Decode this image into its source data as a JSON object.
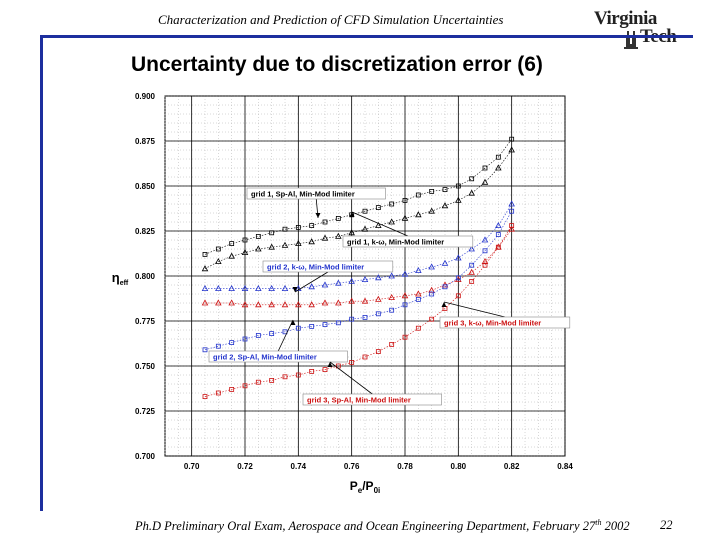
{
  "header": {
    "running_title": "Characterization and Prediction of CFD Simulation Uncertainties",
    "logo_text": "Virginia Tech",
    "logo_top": "Virginia",
    "logo_bottom": "Tech"
  },
  "slide": {
    "title": "Uncertainty due to discretization error (6)"
  },
  "footer": {
    "text": "Ph.D Preliminary Oral Exam, Aerospace and Ocean Engineering Department, February 27",
    "superscript": "th",
    "year": " 2002",
    "page_number": "22"
  },
  "colors": {
    "accent_rule": "#1d2f9e",
    "black_series": "#000000",
    "blue_series": "#2233cc",
    "red_series": "#cc1111"
  },
  "chart_data": {
    "type": "scatter",
    "xlabel_main": "P",
    "xlabel_sub1": "e",
    "xlabel_mid": "/P",
    "xlabel_sub2": "0i",
    "ylabel_main": "η",
    "ylabel_sub": "eff",
    "xlim": [
      0.69,
      0.84
    ],
    "ylim": [
      0.7,
      0.9
    ],
    "xticks": [
      "0.70",
      "0.72",
      "0.74",
      "0.76",
      "0.78",
      "0.80",
      "0.82",
      "0.84"
    ],
    "yticks": [
      "0.900",
      "0.875",
      "0.850",
      "0.825",
      "0.800",
      "0.775",
      "0.750",
      "0.725",
      "0.700"
    ],
    "grid": true,
    "series": [
      {
        "name": "grid 1, Sp-Al, Min-Mod limiter",
        "color": "#000000",
        "marker": "square",
        "x": [
          0.705,
          0.71,
          0.715,
          0.72,
          0.725,
          0.73,
          0.735,
          0.74,
          0.745,
          0.75,
          0.755,
          0.76,
          0.765,
          0.77,
          0.775,
          0.78,
          0.785,
          0.79,
          0.795,
          0.8,
          0.805,
          0.81,
          0.815,
          0.82
        ],
        "y": [
          0.812,
          0.815,
          0.818,
          0.82,
          0.822,
          0.824,
          0.826,
          0.827,
          0.828,
          0.83,
          0.832,
          0.834,
          0.836,
          0.838,
          0.84,
          0.842,
          0.845,
          0.847,
          0.848,
          0.85,
          0.854,
          0.86,
          0.866,
          0.876
        ]
      },
      {
        "name": "grid 1, k-ω, Min-Mod limiter",
        "color": "#000000",
        "marker": "triangle",
        "x": [
          0.705,
          0.71,
          0.715,
          0.72,
          0.725,
          0.73,
          0.735,
          0.74,
          0.745,
          0.75,
          0.755,
          0.76,
          0.765,
          0.77,
          0.775,
          0.78,
          0.785,
          0.79,
          0.795,
          0.8,
          0.805,
          0.81,
          0.815,
          0.82
        ],
        "y": [
          0.804,
          0.808,
          0.811,
          0.813,
          0.815,
          0.816,
          0.817,
          0.818,
          0.819,
          0.821,
          0.822,
          0.824,
          0.826,
          0.828,
          0.83,
          0.832,
          0.834,
          0.836,
          0.839,
          0.842,
          0.846,
          0.852,
          0.86,
          0.87
        ]
      },
      {
        "name": "grid 2, k-ω, Min-Mod limiter",
        "color": "#2233cc",
        "marker": "triangle",
        "x": [
          0.705,
          0.71,
          0.715,
          0.72,
          0.725,
          0.73,
          0.735,
          0.74,
          0.745,
          0.75,
          0.755,
          0.76,
          0.765,
          0.77,
          0.775,
          0.78,
          0.785,
          0.79,
          0.795,
          0.8,
          0.805,
          0.81,
          0.815,
          0.82
        ],
        "y": [
          0.793,
          0.793,
          0.793,
          0.793,
          0.793,
          0.793,
          0.793,
          0.793,
          0.794,
          0.795,
          0.796,
          0.797,
          0.798,
          0.799,
          0.8,
          0.801,
          0.803,
          0.805,
          0.807,
          0.81,
          0.815,
          0.82,
          0.828,
          0.84
        ]
      },
      {
        "name": "grid 3, k-ω, Min-Mod limiter",
        "color": "#cc1111",
        "marker": "triangle",
        "x": [
          0.705,
          0.71,
          0.715,
          0.72,
          0.725,
          0.73,
          0.735,
          0.74,
          0.745,
          0.75,
          0.755,
          0.76,
          0.765,
          0.77,
          0.775,
          0.78,
          0.785,
          0.79,
          0.795,
          0.8,
          0.805,
          0.81,
          0.815,
          0.82
        ],
        "y": [
          0.785,
          0.785,
          0.785,
          0.784,
          0.784,
          0.784,
          0.784,
          0.784,
          0.784,
          0.785,
          0.785,
          0.786,
          0.786,
          0.787,
          0.788,
          0.789,
          0.79,
          0.792,
          0.795,
          0.798,
          0.802,
          0.808,
          0.816,
          0.826
        ]
      },
      {
        "name": "grid 2, Sp-Al, Min-Mod limiter",
        "color": "#2233cc",
        "marker": "square",
        "x": [
          0.705,
          0.71,
          0.715,
          0.72,
          0.725,
          0.73,
          0.735,
          0.74,
          0.745,
          0.75,
          0.755,
          0.76,
          0.765,
          0.77,
          0.775,
          0.78,
          0.785,
          0.79,
          0.795,
          0.8,
          0.805,
          0.81,
          0.815,
          0.82
        ],
        "y": [
          0.759,
          0.761,
          0.763,
          0.765,
          0.767,
          0.768,
          0.769,
          0.771,
          0.772,
          0.773,
          0.774,
          0.776,
          0.777,
          0.779,
          0.781,
          0.784,
          0.787,
          0.79,
          0.794,
          0.799,
          0.806,
          0.814,
          0.823,
          0.836
        ]
      },
      {
        "name": "grid 3, Sp-Al, Min-Mod limiter",
        "color": "#cc1111",
        "marker": "square",
        "x": [
          0.705,
          0.71,
          0.715,
          0.72,
          0.725,
          0.73,
          0.735,
          0.74,
          0.745,
          0.75,
          0.755,
          0.76,
          0.765,
          0.77,
          0.775,
          0.78,
          0.785,
          0.79,
          0.795,
          0.8,
          0.805,
          0.81,
          0.815,
          0.82
        ],
        "y": [
          0.733,
          0.735,
          0.737,
          0.739,
          0.741,
          0.742,
          0.744,
          0.745,
          0.747,
          0.748,
          0.75,
          0.752,
          0.755,
          0.758,
          0.762,
          0.766,
          0.771,
          0.776,
          0.782,
          0.789,
          0.797,
          0.806,
          0.816,
          0.828
        ]
      }
    ],
    "annotations": [
      {
        "text": "grid 1, Sp-Al, Min-Mod limiter",
        "color": "#000000",
        "series": 0
      },
      {
        "text": "grid 1, k-ω, Min-Mod limiter",
        "color": "#000000",
        "series": 1
      },
      {
        "text": "grid 2, k-ω, Min-Mod limiter",
        "color": "#2233cc",
        "series": 2
      },
      {
        "text": "grid 3, k-ω, Min-Mod limiter",
        "color": "#cc1111",
        "series": 3
      },
      {
        "text": "grid 2, Sp-Al, Min-Mod limiter",
        "color": "#2233cc",
        "series": 4
      },
      {
        "text": "grid 3, Sp-Al, Min-Mod limiter",
        "color": "#cc1111",
        "series": 5
      }
    ]
  }
}
